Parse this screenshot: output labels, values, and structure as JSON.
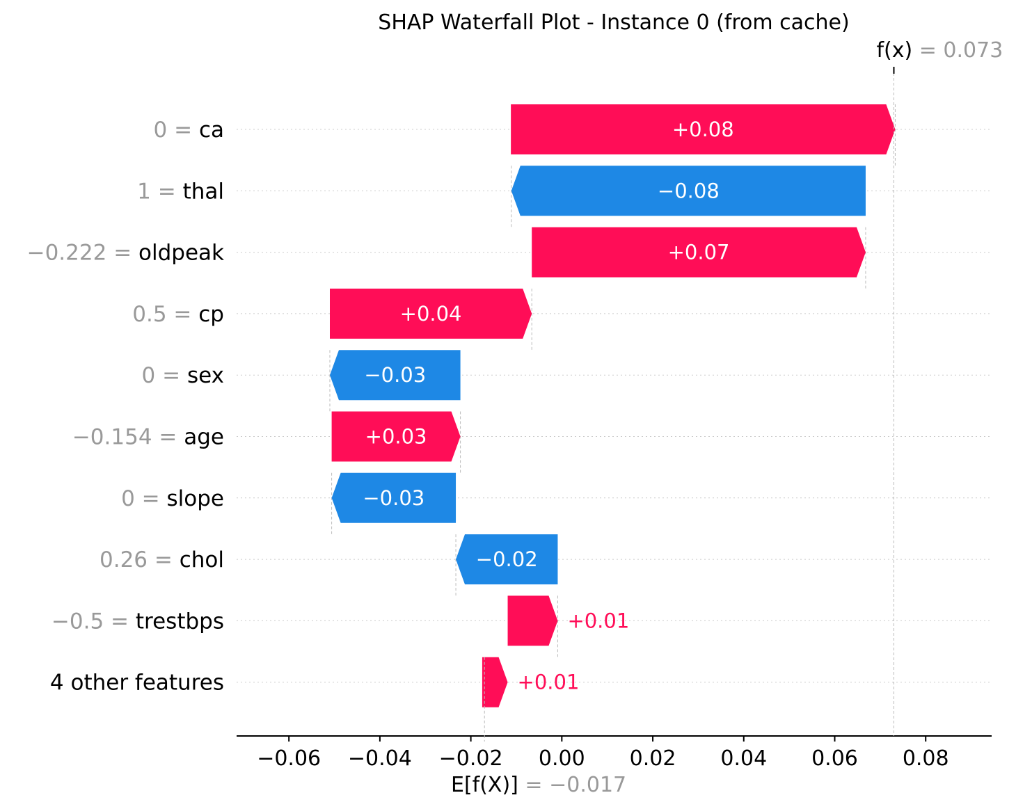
{
  "chart_data": {
    "type": "waterfall",
    "title": "SHAP Waterfall Plot - Instance 0 (from cache)",
    "base_value": -0.017,
    "output_value": 0.073,
    "base_label": "E[f(X)] = −0.017",
    "base_label_parts": [
      "E[f(X)]",
      " = ",
      "−0.017"
    ],
    "output_label_parts": [
      "f(x)",
      " = ",
      "0.073"
    ],
    "xlim": [
      -0.0715,
      0.0945
    ],
    "xticks": [
      -0.06,
      -0.04,
      -0.02,
      0.0,
      0.02,
      0.04,
      0.06,
      0.08
    ],
    "xtick_labels": [
      "−0.06",
      "−0.04",
      "−0.02",
      "0.00",
      "0.02",
      "0.04",
      "0.06",
      "0.08"
    ],
    "features": [
      {
        "value": "0",
        "name": "ca",
        "shap": 0.0845,
        "start": -0.0112,
        "label": "+0.08"
      },
      {
        "value": "1",
        "name": "thal",
        "shap": -0.0779,
        "start": 0.0668,
        "label": "−0.08"
      },
      {
        "value": "−0.222",
        "name": "oldpeak",
        "shap": 0.0734,
        "start": -0.0066,
        "label": "+0.07"
      },
      {
        "value": "0.5",
        "name": "cp",
        "shap": 0.0444,
        "start": -0.051,
        "label": "+0.04"
      },
      {
        "value": "0",
        "name": "sex",
        "shap": -0.0287,
        "start": -0.0223,
        "label": "−0.03"
      },
      {
        "value": "−0.154",
        "name": "age",
        "shap": 0.0283,
        "start": -0.0506,
        "label": "+0.03"
      },
      {
        "value": "0",
        "name": "slope",
        "shap": -0.0273,
        "start": -0.0233,
        "label": "−0.03"
      },
      {
        "value": "0.26",
        "name": "chol",
        "shap": -0.0224,
        "start": -0.0009,
        "label": "−0.02"
      },
      {
        "value": "−0.5",
        "name": "trestbps",
        "shap": 0.011,
        "start": -0.0119,
        "label": "+0.01"
      },
      {
        "value": "",
        "name": "4 other features",
        "shap": 0.0056,
        "start": -0.0175,
        "label": "+0.01"
      }
    ],
    "colors": {
      "positive": "#ff0d57",
      "negative": "#1e88e5",
      "feature_value": "#999999",
      "text": "#000000"
    }
  }
}
